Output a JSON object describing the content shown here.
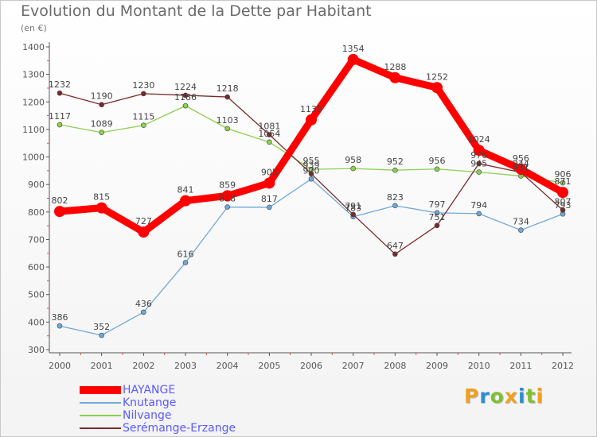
{
  "chart_data": {
    "type": "line",
    "title": "Evolution du Montant de la Dette par Habitant",
    "subtitle": "(en €)",
    "x": [
      "2000",
      "2001",
      "2002",
      "2003",
      "2004",
      "2005",
      "2006",
      "2007",
      "2008",
      "2009",
      "2010",
      "2011",
      "2012"
    ],
    "ylim": [
      300,
      1400
    ],
    "yticks": [
      300,
      400,
      500,
      600,
      700,
      800,
      900,
      1000,
      1100,
      1200,
      1300,
      1400
    ],
    "grid": false,
    "legend_position": "bottom-left",
    "series": [
      {
        "name": "HAYANGE",
        "color": "#ff0000",
        "values": [
          802,
          815,
          727,
          841,
          859,
          905,
          1135,
          1354,
          1288,
          1252,
          1024,
          956,
          871
        ]
      },
      {
        "name": "Knutange",
        "color": "#6fa8d8",
        "values": [
          386,
          352,
          436,
          616,
          818,
          817,
          920,
          783,
          823,
          797,
          794,
          734,
          793
        ]
      },
      {
        "name": "Nilvange",
        "color": "#8ccf50",
        "values": [
          1117,
          1089,
          1115,
          1186,
          1103,
          1054,
          955,
          958,
          952,
          956,
          945,
          931,
          906
        ]
      },
      {
        "name": "Serémange-Erzange",
        "color": "#7a2a2a",
        "values": [
          1232,
          1190,
          1230,
          1224,
          1218,
          1081,
          939,
          791,
          647,
          751,
          976,
          944,
          807
        ]
      }
    ]
  },
  "logo": {
    "letters": [
      "P",
      "r",
      "o",
      "x",
      "i",
      "t",
      "i"
    ],
    "colors": [
      "#f0a020",
      "#2a8fd0",
      "#80c030",
      "#f0a020",
      "#2a8fd0",
      "#80c030",
      "#f0a020"
    ]
  }
}
